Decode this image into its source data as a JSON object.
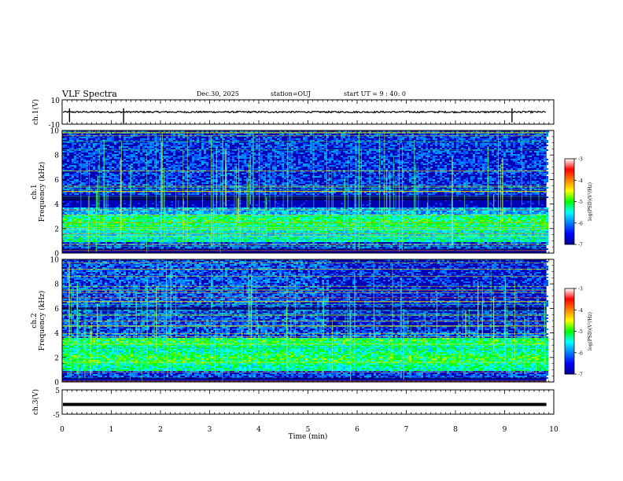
{
  "header": {
    "title": "VLF Spectra",
    "date": "Dec.30, 2025",
    "station": "station=OUJ",
    "start_ut": "start  UT =   9 : 40: 0"
  },
  "chart_data": [
    {
      "type": "line",
      "panel": "ch1-waveform",
      "ylabel": "ch.1(V)",
      "ylim": [
        -10,
        10
      ],
      "yticks": [
        10,
        -10
      ],
      "xlim": [
        0,
        10
      ],
      "baseline": 0,
      "spikes_min": [
        0.15,
        1.25,
        9.15
      ]
    },
    {
      "type": "heatmap",
      "panel": "ch1-spectrogram",
      "ylabel": "ch.1\nFrequency (kHz)",
      "ylim": [
        0,
        10
      ],
      "yticks": [
        "0",
        "2",
        "4",
        "6",
        "8",
        "10"
      ],
      "xlim": [
        0,
        10
      ],
      "data_extent_min": 9.85,
      "colorbar": {
        "label": "log(PSD)(V²/Hz)",
        "range": [
          -7,
          -3
        ],
        "ticks": [
          "-3",
          "-4",
          "-5",
          "-6",
          "-7"
        ]
      }
    },
    {
      "type": "heatmap",
      "panel": "ch2-spectrogram",
      "ylabel": "ch.2\nFrequency (kHz)",
      "ylim": [
        0,
        10
      ],
      "yticks": [
        "0",
        "2",
        "4",
        "6",
        "8",
        "10"
      ],
      "xlim": [
        0,
        10
      ],
      "data_extent_min": 9.85,
      "colorbar": {
        "label": "log(PSD)(V²/Hz)",
        "range": [
          -7,
          -3
        ],
        "ticks": [
          "-3",
          "-4",
          "-5",
          "-6",
          "-7"
        ]
      }
    },
    {
      "type": "line",
      "panel": "ch3-waveform",
      "ylabel": "ch.3(V)",
      "ylim": [
        -5,
        5
      ],
      "yticks": [
        "5",
        "-5"
      ],
      "xlim": [
        0,
        10
      ],
      "level": -1
    }
  ],
  "xaxis": {
    "label": "Time  (min)",
    "ticks": [
      "0",
      "1",
      "2",
      "3",
      "4",
      "5",
      "6",
      "7",
      "8",
      "9",
      "10"
    ]
  }
}
